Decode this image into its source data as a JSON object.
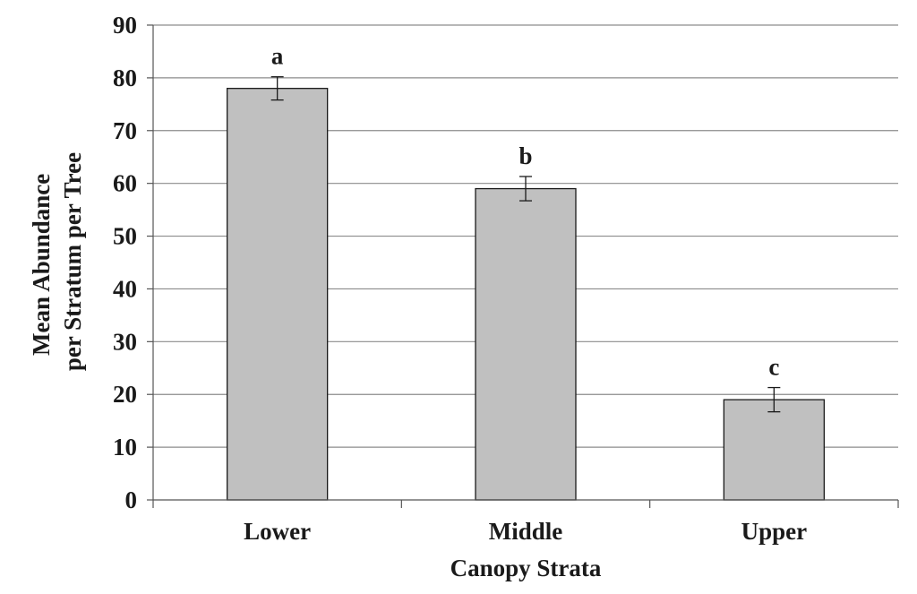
{
  "chart_data": {
    "type": "bar",
    "categories": [
      "Lower",
      "Middle",
      "Upper"
    ],
    "values": [
      78,
      59,
      19
    ],
    "error": [
      2.2,
      2.3,
      2.3
    ],
    "significance_letters": [
      "a",
      "b",
      "c"
    ],
    "xlabel": "Canopy Strata",
    "ylabel_lines": [
      "Mean Abundance",
      "per Stratum per Tree"
    ],
    "ylim": [
      0,
      90
    ],
    "yticks": [
      0,
      10,
      20,
      30,
      40,
      50,
      60,
      70,
      80,
      90
    ],
    "grid": true,
    "legend": "none",
    "colors": {
      "bar_fill": "#c0c0c0",
      "bar_stroke": "#1a1a1a",
      "grid": "#8c8c8c",
      "axis": "#555555",
      "text": "#1a1a1a"
    }
  }
}
